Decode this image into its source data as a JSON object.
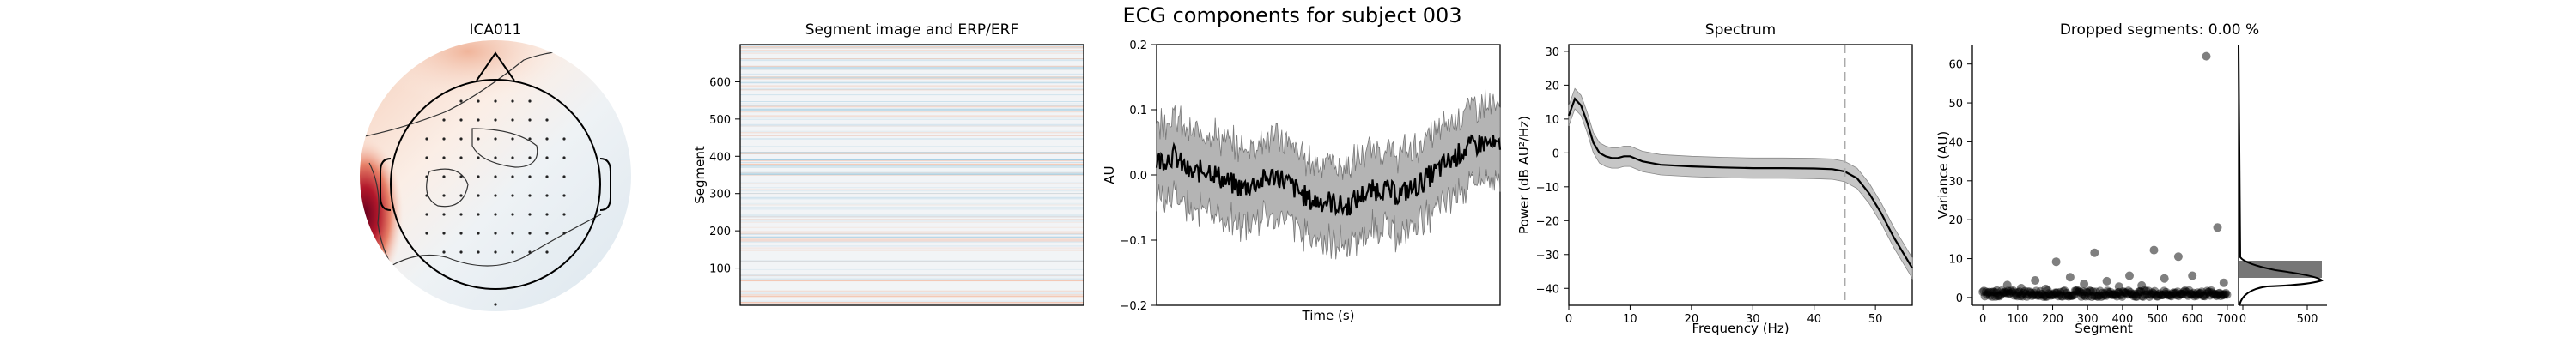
{
  "figure": {
    "title": "ECG components for subject 003"
  },
  "chart_data": [
    {
      "type": "topomap",
      "title": "ICA011"
    },
    {
      "type": "heatmap",
      "title": "Segment image and ERP/ERF",
      "ylabel": "Segment",
      "ylim": [
        0,
        700
      ],
      "yticks": [
        100,
        200,
        300,
        400,
        500,
        600
      ]
    },
    {
      "type": "line",
      "title": "",
      "xlabel": "Time (s)",
      "ylabel": "AU",
      "ylim": [
        -0.2,
        0.2
      ],
      "yticks": [
        "−0.2",
        "−0.1",
        "0.0",
        "0.1",
        "0.2"
      ],
      "description_points": 300,
      "mean_anchor_fracs": [
        0,
        0.05,
        0.1,
        0.15,
        0.2,
        0.25,
        0.3,
        0.35,
        0.4,
        0.45,
        0.5,
        0.55,
        0.6,
        0.65,
        0.7,
        0.75,
        0.8,
        0.85,
        0.9,
        0.95,
        1.0
      ],
      "mean_anchor_values": [
        0.02,
        0.03,
        0.0,
        0.01,
        -0.01,
        -0.02,
        -0.01,
        0.0,
        -0.02,
        -0.04,
        -0.04,
        -0.05,
        -0.03,
        -0.02,
        -0.03,
        -0.02,
        0.0,
        0.02,
        0.04,
        0.05,
        0.04
      ],
      "band_halfwidth": 0.06
    },
    {
      "type": "line",
      "title": "Spectrum",
      "xlabel": "Frequency (Hz)",
      "ylabel": "Power (dB AU²/Hz)",
      "xlim": [
        0,
        56
      ],
      "ylim": [
        -45,
        32
      ],
      "xticks": [
        0,
        10,
        20,
        30,
        40,
        50
      ],
      "yticks": [
        "−40",
        "−30",
        "−20",
        "−10",
        "0",
        "10",
        "20",
        "30"
      ],
      "x": [
        0,
        1,
        2,
        3,
        4,
        5,
        6,
        7,
        8,
        9,
        10,
        12,
        15,
        20,
        25,
        30,
        35,
        40,
        43,
        45,
        47,
        49,
        51,
        53,
        55,
        56
      ],
      "y": [
        11,
        16,
        14,
        9,
        3,
        0,
        -1,
        -1.5,
        -1.5,
        -1,
        -1,
        -2.5,
        -3.5,
        -4,
        -4.3,
        -4.5,
        -4.5,
        -4.6,
        -4.8,
        -5.5,
        -7.5,
        -12,
        -18,
        -25,
        -31,
        -34
      ],
      "band_halfwidth": 3,
      "vline_x": 45
    },
    {
      "type": "scatter",
      "title": "Dropped segments: 0.00 %",
      "xlabel": "Segment",
      "ylabel": "Variance (AU)",
      "xlim": [
        -30,
        720
      ],
      "ylim": [
        -2,
        65
      ],
      "xticks": [
        0,
        100,
        200,
        300,
        400,
        500,
        600,
        700
      ],
      "yticks": [
        0,
        10,
        20,
        30,
        40,
        50,
        60
      ],
      "outliers": [
        {
          "x": 40,
          "y": 1.8
        },
        {
          "x": 70,
          "y": 3.2
        },
        {
          "x": 110,
          "y": 2.4
        },
        {
          "x": 150,
          "y": 4.4
        },
        {
          "x": 180,
          "y": 2.2
        },
        {
          "x": 210,
          "y": 9.2
        },
        {
          "x": 250,
          "y": 5.2
        },
        {
          "x": 290,
          "y": 3.5
        },
        {
          "x": 320,
          "y": 11.5
        },
        {
          "x": 355,
          "y": 4.2
        },
        {
          "x": 390,
          "y": 2.8
        },
        {
          "x": 420,
          "y": 5.6
        },
        {
          "x": 455,
          "y": 3.1
        },
        {
          "x": 490,
          "y": 12.2
        },
        {
          "x": 520,
          "y": 4.9
        },
        {
          "x": 560,
          "y": 10.5
        },
        {
          "x": 600,
          "y": 5.6
        },
        {
          "x": 640,
          "y": 62
        },
        {
          "x": 672,
          "y": 18
        },
        {
          "x": 690,
          "y": 3.8
        }
      ],
      "hist_ticks": [
        0,
        500
      ]
    }
  ]
}
